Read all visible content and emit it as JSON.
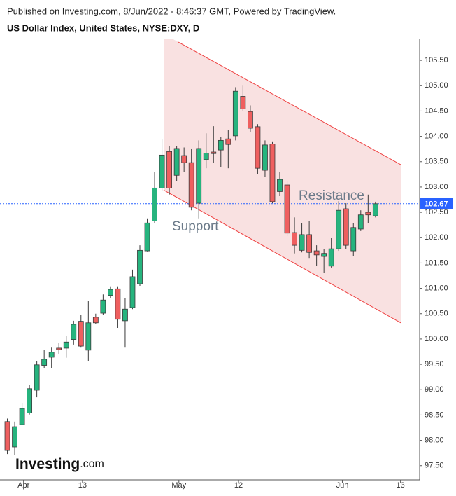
{
  "header": {
    "published": "Published on Investing.com, 8/Jun/2022 - 8:46:37 GMT, Powered by TradingView.",
    "title": "US Dollar Index, United States, NYSE:DXY, D"
  },
  "watermark": {
    "brand": "Investing",
    "suffix": ".com"
  },
  "chart_data": {
    "type": "candlestick",
    "x": [
      0,
      1,
      2,
      3,
      4,
      5,
      6,
      7,
      8,
      9,
      10,
      11,
      12,
      13,
      14,
      15,
      16,
      17,
      18,
      19,
      20,
      21,
      22,
      23,
      24,
      25,
      26,
      27,
      28,
      29,
      30,
      31,
      32,
      33,
      34,
      35,
      36,
      37,
      38,
      39,
      40,
      41,
      42,
      43,
      44,
      45,
      46,
      47,
      48,
      49,
      50
    ],
    "open": [
      98.37,
      97.87,
      98.31,
      98.54,
      98.99,
      99.48,
      99.64,
      99.82,
      99.82,
      99.99,
      100.35,
      99.78,
      100.43,
      100.51,
      100.86,
      100.99,
      100.36,
      100.62,
      101.09,
      101.74,
      102.33,
      102.98,
      103.7,
      103.23,
      103.62,
      103.48,
      102.68,
      103.54,
      103.69,
      103.73,
      103.95,
      104.01,
      104.79,
      104.49,
      104.19,
      103.33,
      103.85,
      102.91,
      103.04,
      102.1,
      101.75,
      102.06,
      101.74,
      101.63,
      101.44,
      101.78,
      102.57,
      101.74,
      102.17,
      102.5,
      102.43
    ],
    "high": [
      98.43,
      98.37,
      98.74,
      99.09,
      99.56,
      99.78,
      99.83,
      99.92,
      100.06,
      100.36,
      100.47,
      100.75,
      100.5,
      100.88,
      101.04,
      101.04,
      100.81,
      101.37,
      101.85,
      102.38,
      103.3,
      103.95,
      103.81,
      103.81,
      103.78,
      103.76,
      103.92,
      104.06,
      104.2,
      103.99,
      104.13,
      104.97,
      105.0,
      104.61,
      104.24,
      103.92,
      103.9,
      103.3,
      103.12,
      102.4,
      102.29,
      102.33,
      101.85,
      101.78,
      101.99,
      102.72,
      102.68,
      102.29,
      102.54,
      102.85,
      102.71
    ],
    "low": [
      97.73,
      97.71,
      98.31,
      98.51,
      98.85,
      99.43,
      99.43,
      99.71,
      99.63,
      99.89,
      99.83,
      99.57,
      100.29,
      100.48,
      100.81,
      100.22,
      99.83,
      100.59,
      101.05,
      101.73,
      102.29,
      102.93,
      102.85,
      103.12,
      103.3,
      102.54,
      102.38,
      103.37,
      103.48,
      103.4,
      103.37,
      103.92,
      104.5,
      104.09,
      103.26,
      103.2,
      102.68,
      102.82,
      102.03,
      101.69,
      101.71,
      101.6,
      101.44,
      101.3,
      101.41,
      101.74,
      101.78,
      101.64,
      102.13,
      102.29,
      102.4
    ],
    "close": [
      97.8,
      98.27,
      98.63,
      99.02,
      99.49,
      99.6,
      99.74,
      99.79,
      99.94,
      100.29,
      99.86,
      100.32,
      100.32,
      100.77,
      100.98,
      100.39,
      100.59,
      101.23,
      101.75,
      102.29,
      102.98,
      103.63,
      102.98,
      103.76,
      103.48,
      102.6,
      103.76,
      103.67,
      103.66,
      103.92,
      103.84,
      104.89,
      104.54,
      104.16,
      103.37,
      103.83,
      102.71,
      103.15,
      102.09,
      101.85,
      102.06,
      101.71,
      101.66,
      101.69,
      101.78,
      102.54,
      101.85,
      102.2,
      102.45,
      102.45,
      102.67
    ],
    "up_color": "#26b47e",
    "down_color": "#ef5f5f",
    "wick_color": "#3a3a3a",
    "xlim": [
      -1,
      56
    ],
    "xticks": [
      {
        "value": 2.2,
        "label": "Apr"
      },
      {
        "value": 10.2,
        "label": "13"
      },
      {
        "value": 23.3,
        "label": "May"
      },
      {
        "value": 31.4,
        "label": "12"
      },
      {
        "value": 45.5,
        "label": "Jun"
      },
      {
        "value": 53.4,
        "label": "13"
      }
    ],
    "ylim": [
      97.22,
      105.93
    ],
    "yticks": [
      {
        "value": 97.5,
        "label": "97.50"
      },
      {
        "value": 98,
        "label": "98.00"
      },
      {
        "value": 98.5,
        "label": "98.50"
      },
      {
        "value": 99,
        "label": "99.00"
      },
      {
        "value": 99.5,
        "label": "99.50"
      },
      {
        "value": 100,
        "label": "100.00"
      },
      {
        "value": 100.5,
        "label": "100.50"
      },
      {
        "value": 101,
        "label": "101.00"
      },
      {
        "value": 101.5,
        "label": "101.50"
      },
      {
        "value": 102,
        "label": "102.00"
      },
      {
        "value": 102.5,
        "label": "102.50"
      },
      {
        "value": 103,
        "label": "103.00"
      },
      {
        "value": 103.5,
        "label": "103.50"
      },
      {
        "value": 104,
        "label": "104.00"
      },
      {
        "value": 104.5,
        "label": "104.50"
      },
      {
        "value": 105,
        "label": "105.00"
      },
      {
        "value": 105.5,
        "label": "105.50"
      }
    ],
    "grid": false,
    "last_price": 102.67,
    "last_price_color": "#2962ff",
    "channel": {
      "upper_x": [
        23.23,
        53.44
      ],
      "upper_y": [
        105.86,
        103.44
      ],
      "lower_x": [
        21.23,
        53.44
      ],
      "lower_y": [
        102.94,
        100.32
      ],
      "color": "#ef4040",
      "fill": "#f9e1e1"
    },
    "annotations": [
      "Resistance",
      "Support"
    ]
  }
}
